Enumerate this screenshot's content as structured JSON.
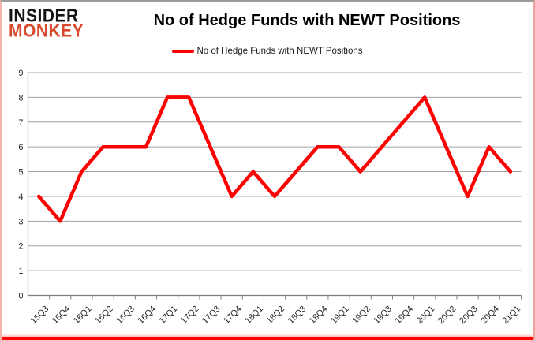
{
  "logo": {
    "line1": "INSIDER",
    "line2": "MONKEY"
  },
  "title": "No of Hedge Funds with NEWT Positions",
  "legend": {
    "label": "No of Hedge Funds with NEWT Positions",
    "swatch_color": "#fe0000"
  },
  "chart_data": {
    "type": "line",
    "title": "No of Hedge Funds with NEWT Positions",
    "categories": [
      "15Q3",
      "15Q4",
      "16Q1",
      "16Q2",
      "16Q3",
      "16Q4",
      "17Q1",
      "17Q2",
      "17Q3",
      "17Q4",
      "18Q1",
      "18Q2",
      "18Q3",
      "18Q4",
      "19Q1",
      "19Q2",
      "19Q3",
      "19Q4",
      "20Q1",
      "20Q2",
      "20Q3",
      "20Q4",
      "21Q1"
    ],
    "series": [
      {
        "name": "No of Hedge Funds with NEWT Positions",
        "color": "#fe0000",
        "values": [
          4,
          3,
          5,
          6,
          6,
          6,
          8,
          8,
          6,
          4,
          5,
          4,
          5,
          6,
          6,
          5,
          6,
          7,
          8,
          6,
          4,
          6,
          5
        ]
      }
    ],
    "xlabel": "",
    "ylabel": "",
    "ylim": [
      0,
      9
    ],
    "ytick_interval": 1,
    "grid": "horizontal",
    "legend_position": "top-center"
  },
  "colors": {
    "line": "#fe0000",
    "grid": "#a0a0a0",
    "axis": "#808080",
    "tick_text": "#262626",
    "logo_black": "#141414",
    "logo_red": "#d84a2e",
    "border_bottom": "#fb0503"
  }
}
